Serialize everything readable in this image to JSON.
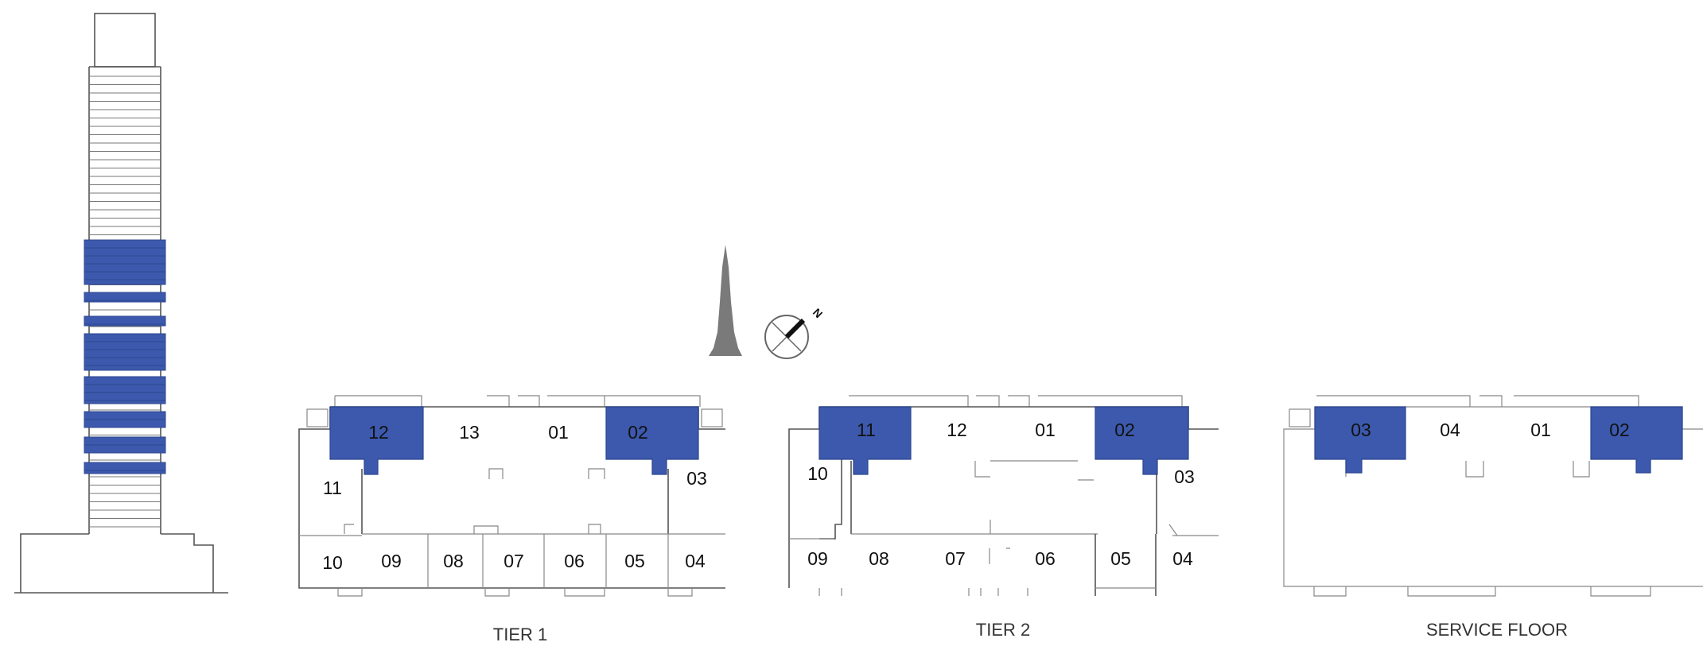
{
  "colors": {
    "highlight": "#3c59ad",
    "outline": "#555555",
    "text": "#111111",
    "landmark": "#7a7a7a"
  },
  "icons": {
    "landmark": "burj-khalifa-icon",
    "compass": "north-compass-icon"
  },
  "compass_label": "N",
  "tower": {
    "highlighted_bands": 8
  },
  "plans": [
    {
      "caption": "TIER 1",
      "top_units": [
        "12",
        "13",
        "01",
        "02"
      ],
      "highlighted": [
        "12",
        "02"
      ],
      "side_left": "11",
      "side_right": "03",
      "bottom_units": [
        "10",
        "09",
        "08",
        "07",
        "06",
        "05",
        "04"
      ]
    },
    {
      "caption": "TIER 2",
      "top_units": [
        "11",
        "12",
        "01",
        "02"
      ],
      "highlighted": [
        "11",
        "02"
      ],
      "side_left": "10",
      "side_right": "03",
      "bottom_units": [
        "09",
        "08",
        "07",
        "06",
        "05",
        "04"
      ]
    },
    {
      "caption": "SERVICE FLOOR",
      "top_units": [
        "03",
        "04",
        "01",
        "02"
      ],
      "highlighted": [
        "03",
        "02"
      ]
    }
  ]
}
